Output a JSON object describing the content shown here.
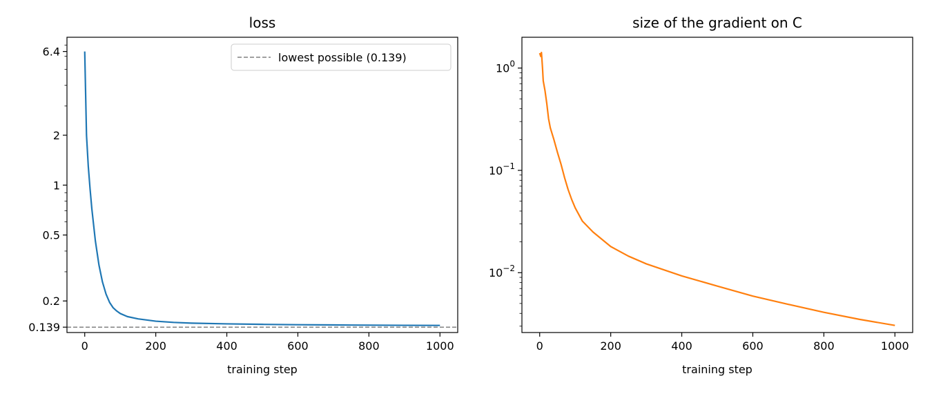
{
  "chart_data": [
    {
      "type": "line",
      "title": "loss",
      "xlabel": "training step",
      "ylabel": "",
      "yscale": "log",
      "xlim": [
        -50,
        1050
      ],
      "ylim": [
        0.129,
        7.8
      ],
      "x_ticks": [
        0,
        200,
        400,
        600,
        800,
        1000
      ],
      "x_tick_labels": [
        "0",
        "200",
        "400",
        "600",
        "800",
        "1000"
      ],
      "y_ticks": [
        0.139,
        0.2,
        0.5,
        1,
        2,
        6.4
      ],
      "y_tick_labels": [
        "0.139",
        "0.2",
        "0.5",
        "1",
        "2",
        "6.4"
      ],
      "grid": false,
      "legend_position": "top-right",
      "reference_line": {
        "y": 0.139,
        "style": "dashed",
        "label": "lowest possible (0.139)",
        "color": "#808080"
      },
      "series": [
        {
          "color": "#1f77b4",
          "x": [
            0,
            5,
            10,
            15,
            20,
            30,
            40,
            50,
            60,
            70,
            80,
            90,
            100,
            120,
            150,
            200,
            250,
            300,
            400,
            500,
            600,
            700,
            800,
            900,
            1000
          ],
          "y": [
            6.4,
            2.0,
            1.3,
            0.95,
            0.72,
            0.46,
            0.33,
            0.26,
            0.22,
            0.196,
            0.182,
            0.174,
            0.168,
            0.161,
            0.156,
            0.151,
            0.1485,
            0.147,
            0.1455,
            0.1445,
            0.1438,
            0.1433,
            0.1429,
            0.1426,
            0.1424
          ]
        }
      ]
    },
    {
      "type": "line",
      "title": "size of the gradient on C",
      "xlabel": "training step",
      "ylabel": "",
      "yscale": "log",
      "xlim": [
        -50,
        1050
      ],
      "ylim": [
        0.0026,
        2.0
      ],
      "x_ticks": [
        0,
        200,
        400,
        600,
        800,
        1000
      ],
      "x_tick_labels": [
        "0",
        "200",
        "400",
        "600",
        "800",
        "1000"
      ],
      "y_ticks": [
        0.01,
        0.1,
        1
      ],
      "y_tick_labels": [
        {
          "base": "10",
          "exp": "−2"
        },
        {
          "base": "10",
          "exp": "−1"
        },
        {
          "base": "10",
          "exp": "0"
        }
      ],
      "grid": false,
      "series": [
        {
          "color": "#ff7f0e",
          "x": [
            0,
            3,
            5,
            8,
            10,
            15,
            20,
            25,
            30,
            40,
            50,
            60,
            70,
            80,
            90,
            100,
            120,
            150,
            200,
            250,
            300,
            400,
            500,
            600,
            700,
            800,
            900,
            1000
          ],
          "y": [
            1.4,
            1.3,
            1.42,
            1.0,
            0.75,
            0.6,
            0.45,
            0.32,
            0.26,
            0.2,
            0.15,
            0.115,
            0.085,
            0.065,
            0.052,
            0.043,
            0.032,
            0.025,
            0.018,
            0.0145,
            0.0122,
            0.0093,
            0.0074,
            0.0059,
            0.0049,
            0.0041,
            0.0035,
            0.00305
          ]
        }
      ]
    }
  ]
}
